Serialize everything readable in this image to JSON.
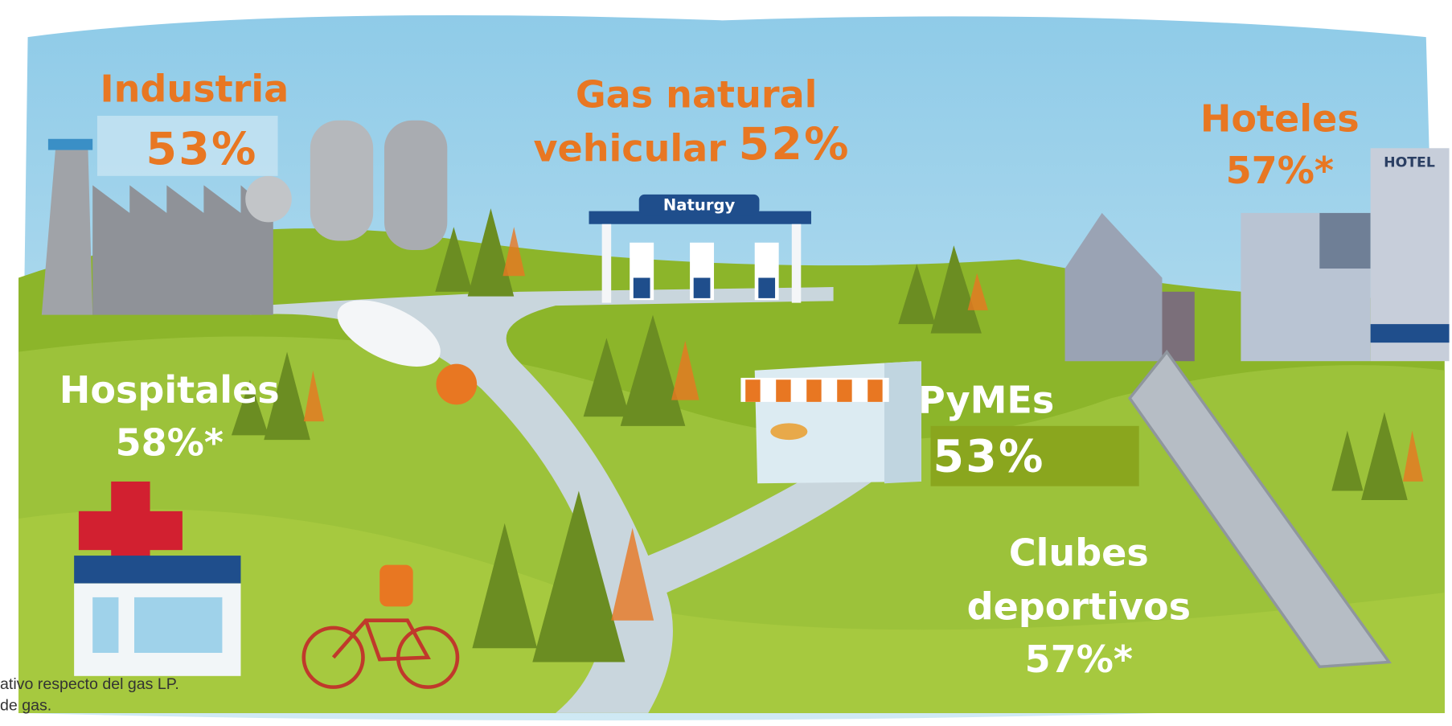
{
  "labels": [
    {
      "name": [
        "Industria"
      ],
      "value": "53%"
    },
    {
      "name": [
        "Gas natural",
        "vehicular"
      ],
      "value": "52%"
    },
    {
      "name": [
        "Hoteles"
      ],
      "value": "57%*"
    },
    {
      "name": [
        "Hospitales"
      ],
      "value": "58%*"
    },
    {
      "name": [
        "PyMEs"
      ],
      "value": "53%"
    },
    {
      "name": [
        "Clubes",
        "deportivos"
      ],
      "value": "57%*"
    }
  ],
  "signs": {
    "brand": "Naturgy",
    "hotel": "HOTEL"
  },
  "footnotes": [
    "ativo respecto del gas LP.",
    "de gas."
  ]
}
